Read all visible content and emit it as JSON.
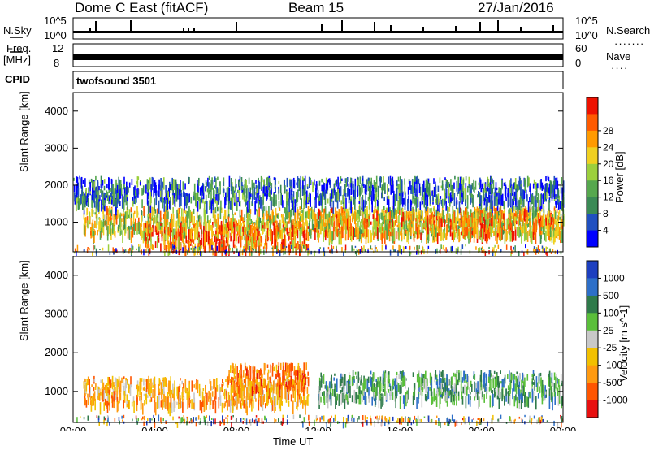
{
  "header": {
    "radar": "Dome C East (fitACF)",
    "beam": "Beam 15",
    "date": "27/Jan/2016"
  },
  "status": {
    "nsky_label": "N.Sky",
    "nsky_hi": "10^5",
    "nsky_lo": "10^0",
    "nsearch_label": "N.Search",
    "nsearch_hi": "10^5",
    "nsearch_lo": "10^0",
    "freq_label": "Freq.",
    "freq_unit": "[MHz]",
    "freq_hi": "12",
    "freq_lo": "8",
    "nave_label": "Nave",
    "nave_hi": "60",
    "nave_lo": "0",
    "cpid_label": "CPID",
    "cpid_value": "twofsound 3501"
  },
  "chart_data": [
    {
      "type": "heatmap",
      "ylabel": "Slant Range [km]",
      "xlabel": "Time UT",
      "x_ticks": [
        "00:00",
        "04:00",
        "08:00",
        "12:00",
        "16:00",
        "20:00",
        "00:00"
      ],
      "y_ticks": [
        "1000",
        "2000",
        "3000",
        "4000"
      ],
      "ylim": [
        200,
        4500
      ],
      "colorbar": {
        "label": "Power [dB]",
        "ticks": [
          "4",
          "8",
          "12",
          "16",
          "20",
          "24",
          "28"
        ],
        "colors": [
          "#0000ff",
          "#2050c0",
          "#3a8a55",
          "#56a84e",
          "#9ccf3c",
          "#f0d020",
          "#ff9a00",
          "#ff5a00",
          "#ee1100"
        ]
      },
      "echo_bands": [
        {
          "t_start": 0.5,
          "t_end": 24,
          "range": 1100,
          "power": 20
        },
        {
          "t_start": 3.5,
          "t_end": 11.5,
          "range": 700,
          "power": 28
        },
        {
          "t_start": 11.8,
          "t_end": 24,
          "range": 1050,
          "power": 24
        },
        {
          "t_start": 0,
          "t_end": 24,
          "range": 1900,
          "power": 8
        }
      ]
    },
    {
      "type": "heatmap",
      "ylabel": "Slant Range [km]",
      "xlabel": "Time UT",
      "x_ticks": [
        "00:00",
        "04:00",
        "08:00",
        "12:00",
        "16:00",
        "20:00",
        "00:00"
      ],
      "y_ticks": [
        "1000",
        "2000",
        "3000",
        "4000"
      ],
      "ylim": [
        200,
        4500
      ],
      "colorbar": {
        "label": "Velocity [m s^-1]",
        "ticks": [
          "1000",
          "500",
          "100",
          "25",
          "-25",
          "-100",
          "-500",
          "-1000"
        ],
        "colors": [
          "#1d3fbf",
          "#2d6fc8",
          "#2f7a4a",
          "#5abf3a",
          "#c8c8c8",
          "#f2c000",
          "#ff9a10",
          "#ff5500",
          "#e81010"
        ]
      },
      "echo_bands": [
        {
          "t_start": 0.5,
          "t_end": 11.5,
          "range": 1050,
          "velocity": -100
        },
        {
          "t_start": 7.5,
          "t_end": 11.5,
          "range": 1400,
          "velocity": -500
        },
        {
          "t_start": 12,
          "t_end": 24,
          "range": 1200,
          "velocity": 100
        }
      ]
    }
  ],
  "xaxis_label": "Time UT"
}
